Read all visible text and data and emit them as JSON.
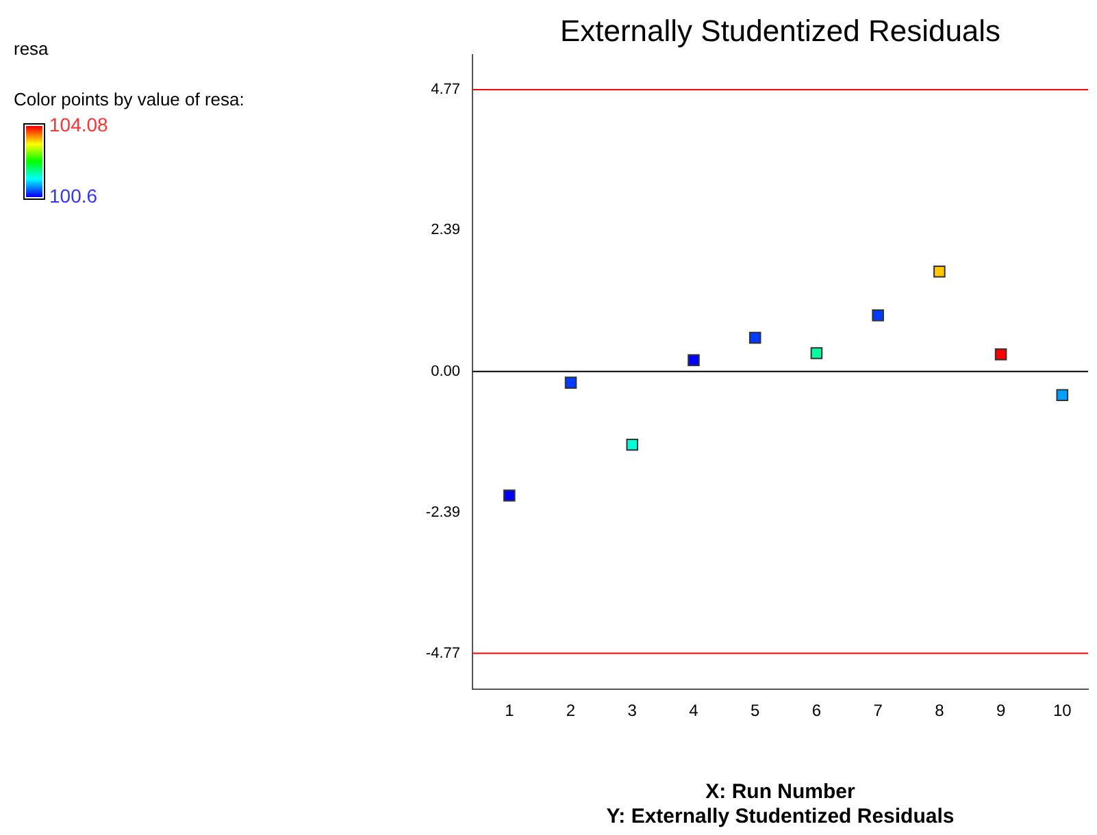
{
  "chart_data": {
    "type": "scatter",
    "title": "Externally Studentized Residuals",
    "xlabel": "X: Run Number",
    "clabel": "Color points by value of resa:",
    "annotations": [
      "resa",
      "Y: Externally Studentized Residuals"
    ],
    "x": [
      1,
      2,
      3,
      4,
      5,
      6,
      7,
      8,
      9,
      10
    ],
    "values": [
      -2.1,
      -0.19,
      -1.24,
      0.19,
      0.57,
      0.31,
      0.95,
      1.69,
      0.29,
      -0.4
    ],
    "cvalues": [
      100.6,
      100.8,
      101.6,
      100.6,
      100.8,
      101.8,
      100.8,
      103.4,
      104.08,
      101.15
    ],
    "clim": [
      100.6,
      104.08
    ],
    "cticks": [
      100.6,
      104.08
    ],
    "xlim": [
      0.4,
      10.42
    ],
    "xticks": [
      1,
      2,
      3,
      4,
      5,
      6,
      7,
      8,
      9,
      10
    ],
    "ylim": [
      -5.38,
      5.36
    ],
    "yticks": [
      -4.77,
      -2.39,
      {
        "value": 0,
        "label": "0.00"
      },
      2.39,
      4.77
    ],
    "ref_lines": [
      {
        "axis": "y",
        "value": 4.77,
        "color": "#ff0000"
      },
      {
        "axis": "y",
        "value": -4.77,
        "color": "#ff0000"
      },
      {
        "axis": "y",
        "value": 0,
        "color": "#000000"
      }
    ],
    "marker": "square",
    "grid": false,
    "legend": false
  }
}
